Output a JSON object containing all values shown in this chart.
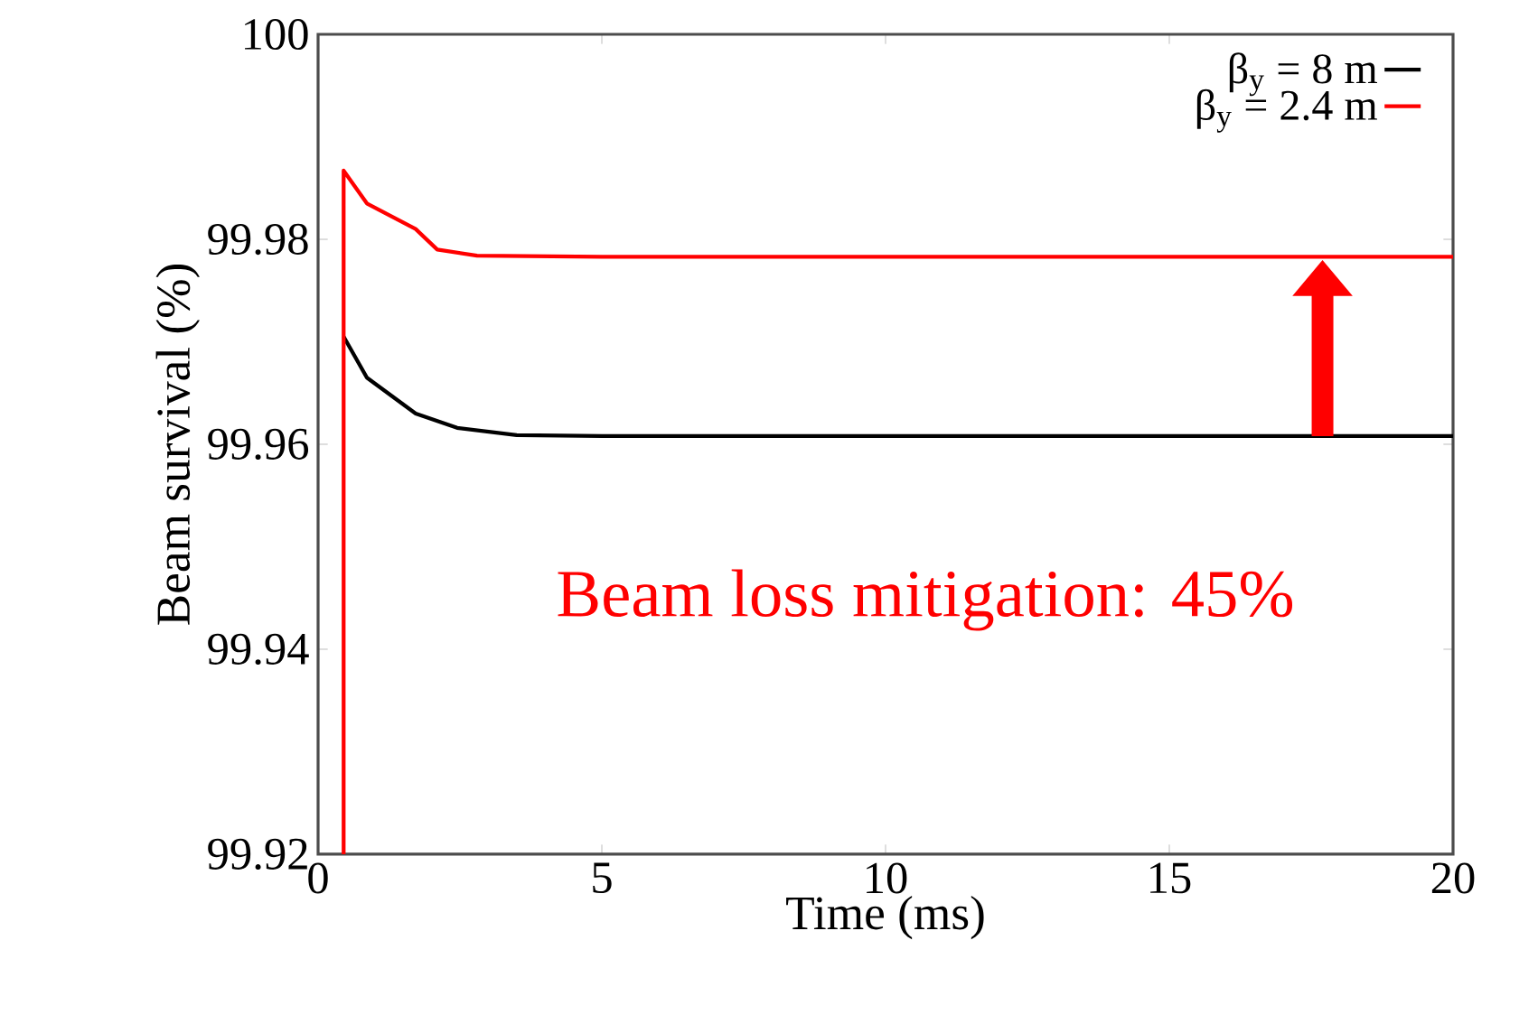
{
  "chart_data": {
    "type": "line",
    "xlabel": "Time (ms)",
    "ylabel": "Beam survival (%)",
    "xlim": [
      0,
      20
    ],
    "xticks": [
      0,
      5,
      10,
      15,
      20
    ],
    "ylim": [
      99.92,
      100
    ],
    "yticks": [
      99.92,
      99.94,
      99.96,
      99.98,
      100
    ],
    "legend": "top right",
    "grid": false,
    "marker": "none",
    "line_style": "solid",
    "annotations": [
      "Beam loss mitigation: 45%"
    ],
    "series": [
      {
        "name": "β$_{y}$ = 8 m",
        "color": "#000000",
        "x": [
          0.45,
          0.86,
          1.72,
          2.45,
          3.5,
          5,
          10,
          15,
          20
        ],
        "values": [
          99.9705,
          99.9665,
          99.963,
          99.9616,
          99.9609,
          99.9608,
          99.9608,
          99.9608,
          99.9608
        ]
      },
      {
        "name": "β$_{y}$ = 2.4 m",
        "color": "#ff0000",
        "x": [
          0.45,
          0.45,
          0.86,
          1.72,
          2.1,
          2.8,
          5,
          10,
          15,
          20
        ],
        "values": [
          99.92,
          99.9867,
          99.9835,
          99.981,
          99.979,
          99.9784,
          99.9783,
          99.9783,
          99.9783,
          99.9783
        ]
      }
    ]
  }
}
